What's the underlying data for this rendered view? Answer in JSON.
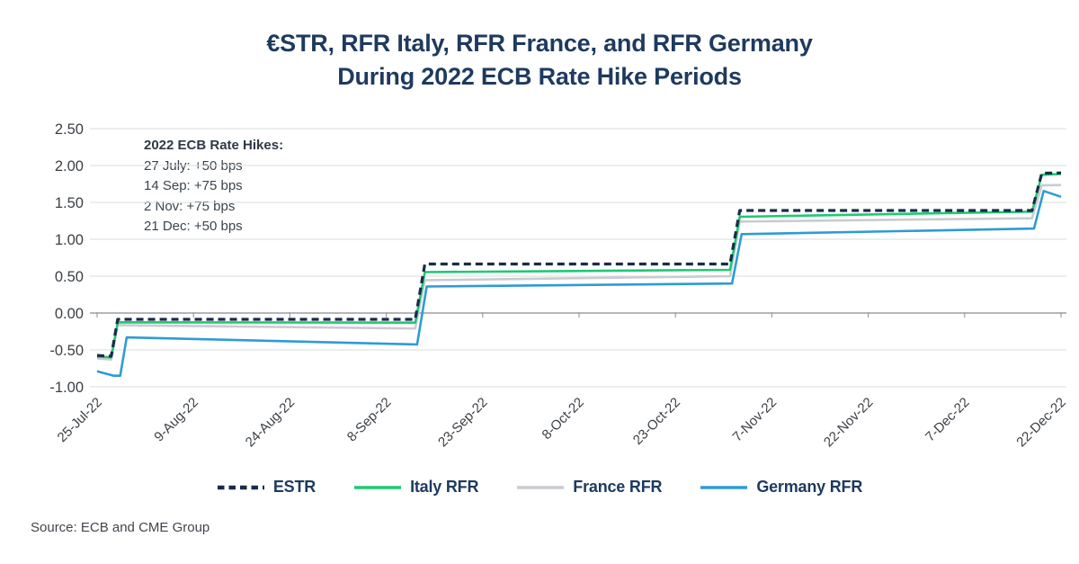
{
  "title": {
    "line1": "€STR, RFR Italy, RFR France, and RFR Germany",
    "line2": "During 2022 ECB Rate Hike Periods"
  },
  "annotation": {
    "heading": "2022 ECB Rate Hikes:",
    "lines": [
      "27 July: +50 bps",
      "14 Sep: +75 bps",
      "2 Nov: +75 bps",
      "21 Dec: +50 bps"
    ]
  },
  "source": "Source: ECB and CME Group",
  "chart_data": {
    "type": "line",
    "title": "€STR, RFR Italy, RFR France, and RFR Germany During 2022 ECB Rate Hike Periods",
    "xlabel": "",
    "ylabel": "",
    "x_unit": "days since 25-Jul-2022",
    "x_range": [
      0,
      150
    ],
    "ylim": [
      -1.0,
      2.5
    ],
    "grid": true,
    "legend_position": "bottom",
    "grid_color": "#dadcdd",
    "axis_color": "#9aa0a5",
    "y_ticks": [
      {
        "label": "2.50",
        "value": 2.5
      },
      {
        "label": "2.00",
        "value": 2.0
      },
      {
        "label": "1.50",
        "value": 1.5
      },
      {
        "label": "1.00",
        "value": 1.0
      },
      {
        "label": "0.50",
        "value": 0.5
      },
      {
        "label": "0.00",
        "value": 0.0
      },
      {
        "label": "-0.50",
        "value": -0.5
      },
      {
        "label": "-1.00",
        "value": -1.0
      }
    ],
    "x_ticks": [
      {
        "label": "25-Jul-22",
        "day": 0
      },
      {
        "label": "9-Aug-22",
        "day": 15
      },
      {
        "label": "24-Aug-22",
        "day": 30
      },
      {
        "label": "8-Sep-22",
        "day": 45
      },
      {
        "label": "23-Sep-22",
        "day": 60
      },
      {
        "label": "8-Oct-22",
        "day": 75
      },
      {
        "label": "23-Oct-22",
        "day": 90
      },
      {
        "label": "7-Nov-22",
        "day": 105
      },
      {
        "label": "22-Nov-22",
        "day": 120
      },
      {
        "label": "7-Dec-22",
        "day": 135
      },
      {
        "label": "22-Dec-22",
        "day": 150
      }
    ],
    "series": [
      {
        "name": "ESTR",
        "color": "#1a2b49",
        "dash": "8 5",
        "width": 3.2,
        "points": [
          [
            0,
            -0.575
          ],
          [
            2.2,
            -0.585
          ],
          [
            3.2,
            -0.085
          ],
          [
            49.5,
            -0.085
          ],
          [
            51,
            0.665
          ],
          [
            98.5,
            0.665
          ],
          [
            100,
            1.39
          ],
          [
            145.5,
            1.39
          ],
          [
            147,
            1.895
          ],
          [
            150,
            1.9
          ]
        ]
      },
      {
        "name": "Italy RFR",
        "color": "#1ec973",
        "dash": null,
        "width": 2.6,
        "points": [
          [
            0,
            -0.59
          ],
          [
            2.2,
            -0.6
          ],
          [
            3.2,
            -0.125
          ],
          [
            49.5,
            -0.13
          ],
          [
            51,
            0.555
          ],
          [
            98.5,
            0.585
          ],
          [
            100,
            1.305
          ],
          [
            145.5,
            1.375
          ],
          [
            147,
            1.875
          ],
          [
            150,
            1.885
          ]
        ]
      },
      {
        "name": "France RFR",
        "color": "#c9cccf",
        "dash": null,
        "width": 2.6,
        "points": [
          [
            0,
            -0.615
          ],
          [
            2.2,
            -0.63
          ],
          [
            3.2,
            -0.165
          ],
          [
            49.5,
            -0.21
          ],
          [
            51,
            0.445
          ],
          [
            98.5,
            0.5
          ],
          [
            100,
            1.24
          ],
          [
            145.5,
            1.285
          ],
          [
            147,
            1.73
          ],
          [
            150,
            1.735
          ]
        ]
      },
      {
        "name": "Germany RFR",
        "color": "#2e9bd6",
        "dash": null,
        "width": 2.6,
        "points": [
          [
            0,
            -0.79
          ],
          [
            2.6,
            -0.85
          ],
          [
            3.6,
            -0.85
          ],
          [
            4.6,
            -0.33
          ],
          [
            49.8,
            -0.425
          ],
          [
            51.3,
            0.36
          ],
          [
            98.8,
            0.4
          ],
          [
            100.3,
            1.07
          ],
          [
            145.8,
            1.145
          ],
          [
            147.3,
            1.655
          ],
          [
            150,
            1.575
          ]
        ]
      }
    ]
  }
}
